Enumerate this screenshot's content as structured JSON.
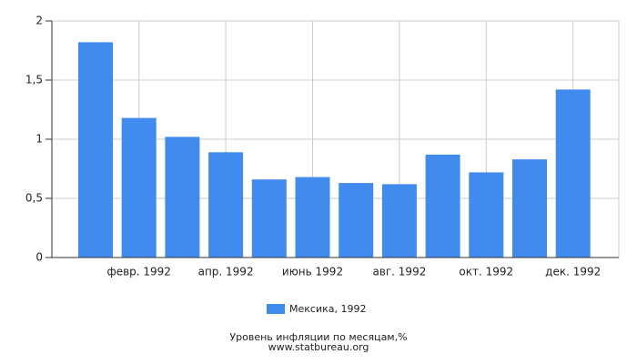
{
  "chart_data": {
    "type": "bar",
    "categories": [
      null,
      "февр. 1992",
      null,
      "апр. 1992",
      null,
      "июнь 1992",
      null,
      "авг. 1992",
      null,
      "окт. 1992",
      null,
      "дек. 1992"
    ],
    "series": [
      {
        "name": "Мексика, 1992",
        "color": "#418bef",
        "values": [
          1.82,
          1.18,
          1.02,
          0.89,
          0.66,
          0.68,
          0.63,
          0.62,
          0.87,
          0.72,
          0.83,
          1.42
        ]
      }
    ],
    "ylim": [
      0,
      2
    ],
    "yticks": [
      0,
      {
        "value": 0.5,
        "label": "0,5"
      },
      1,
      {
        "value": 1.5,
        "label": "1,5"
      },
      2
    ],
    "grid": true,
    "title": "Уровень инфляции по месяцам,%",
    "subtitle": "www.statbureau.org"
  }
}
